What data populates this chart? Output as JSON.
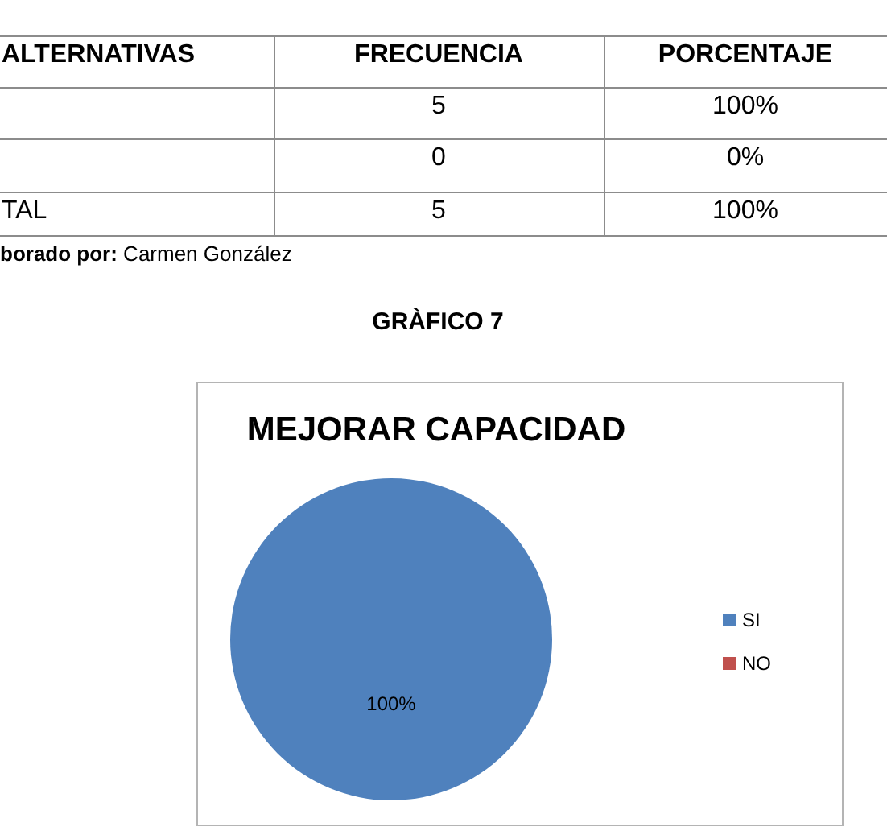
{
  "chart_data": [
    {
      "type": "other",
      "annotations": [
        "ALTERNATIVAS",
        "FRECUENCIA",
        "PORCENTAJE",
        "5",
        "100%",
        "0",
        "0%",
        "TAL",
        "5",
        "100%",
        "borado por:",
        "Carmen González"
      ]
    },
    {
      "type": "pie",
      "title": "MEJORAR CAPACIDAD",
      "annotations": [
        "GRÀFICO 7"
      ],
      "categories": [
        "SI",
        "NO"
      ],
      "values": [
        100,
        0
      ],
      "colors": [
        "#4f81bd",
        "#c0504d"
      ],
      "value_labels": [
        "100%",
        null
      ],
      "legend": "right"
    }
  ]
}
